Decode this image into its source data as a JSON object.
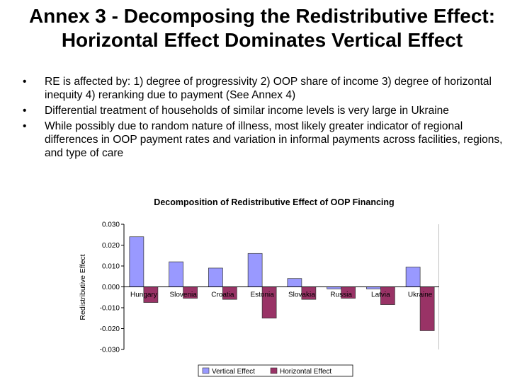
{
  "slide": {
    "title": "Annex 3 - Decomposing the Redistributive Effect: Horizontal Effect Dominates Vertical Effect",
    "bullets": [
      "RE is affected by: 1) degree of progressivity 2) OOP share of income 3) degree of horizontal inequity 4) reranking due to payment (See Annex 4)",
      "Differential treatment of households of similar income levels is very large in Ukraine",
      "While possibly due to random nature of illness, most likely greater indicator of regional differences in OOP payment rates and variation in informal payments across facilities, regions, and type of care"
    ],
    "bullet_glyph": "•"
  },
  "chart_data": {
    "type": "bar",
    "title": "Decomposition of Redistributive Effect of OOP Financing",
    "xlabel": "",
    "ylabel": "Redistributive Effect",
    "ylim": [
      -0.03,
      0.03
    ],
    "yticks": [
      "0.030",
      "0.020",
      "0.010",
      "0.000",
      "-0.010",
      "-0.020",
      "-0.030"
    ],
    "categories": [
      "Hungary",
      "Slovenia",
      "Croatia",
      "Estonia",
      "Slovakia",
      "Russia",
      "Latvia",
      "Ukraine"
    ],
    "series": [
      {
        "name": "Vertical Effect",
        "values": [
          0.024,
          0.012,
          0.009,
          0.016,
          0.004,
          -0.001,
          -0.001,
          0.0095
        ],
        "color": "#9999ff"
      },
      {
        "name": "Horizontal Effect",
        "values": [
          -0.0075,
          -0.0055,
          -0.006,
          -0.015,
          -0.006,
          -0.0055,
          -0.0085,
          -0.021
        ],
        "color": "#993366"
      }
    ],
    "grid": false,
    "legend": "bottom"
  }
}
